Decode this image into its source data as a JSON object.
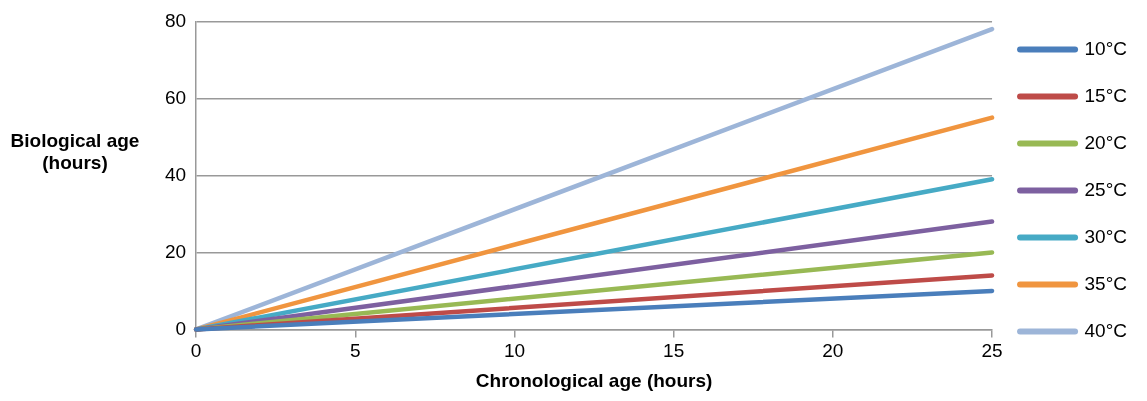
{
  "chart_data": {
    "type": "line",
    "xlabel": "Chronological age (hours)",
    "ylabel": "Biological age (hours)",
    "x": [
      0,
      25
    ],
    "xlim": [
      0,
      25
    ],
    "xticks": [
      0,
      5,
      10,
      15,
      20,
      25
    ],
    "ylim": [
      0,
      80
    ],
    "yticks": [
      0,
      20,
      40,
      60,
      80
    ],
    "grid": "y",
    "legend": "right",
    "marker": "none",
    "line_style": "solid",
    "series": [
      {
        "name": "10°C",
        "color": "#4a7ebb",
        "values": [
          0,
          10
        ]
      },
      {
        "name": "15°C",
        "color": "#be4b48",
        "values": [
          0,
          14
        ]
      },
      {
        "name": "20°C",
        "color": "#98b954",
        "values": [
          0,
          20
        ]
      },
      {
        "name": "25°C",
        "color": "#7d60a0",
        "values": [
          0,
          28
        ]
      },
      {
        "name": "30°C",
        "color": "#46aac5",
        "values": [
          0,
          39
        ]
      },
      {
        "name": "35°C",
        "color": "#f0953f",
        "values": [
          0,
          55
        ]
      },
      {
        "name": "40°C",
        "color": "#9db5d8",
        "values": [
          0,
          78
        ]
      }
    ]
  }
}
